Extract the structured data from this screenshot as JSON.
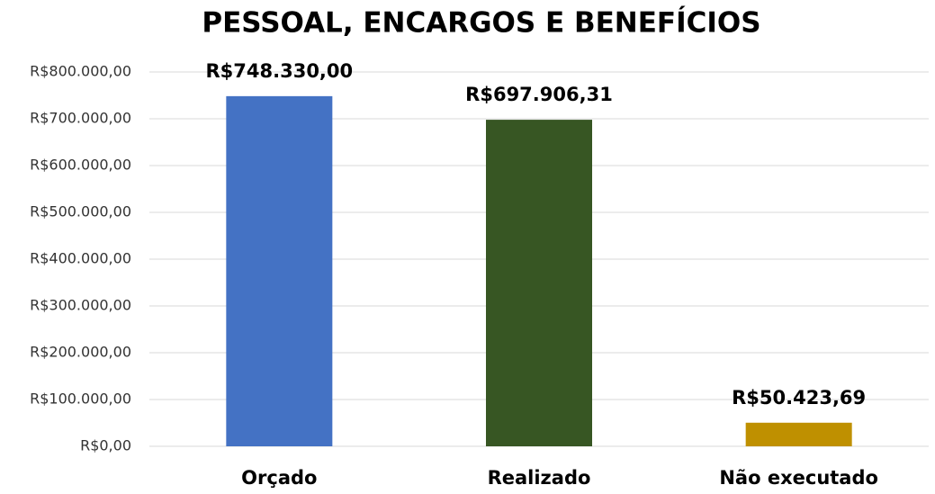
{
  "chart_data": {
    "type": "bar",
    "title": "PESSOAL, ENCARGOS E BENEFÍCIOS",
    "categories": [
      "Orçado",
      "Realizado",
      "Não executado"
    ],
    "values": [
      748330.0,
      697906.31,
      50423.69
    ],
    "value_labels": [
      "R$748.330,00",
      "R$697.906,31",
      "R$50.423,69"
    ],
    "colors": [
      "#4472c4",
      "#375623",
      "#bf9000"
    ],
    "ylim": [
      0,
      800000
    ],
    "yticks": [
      {
        "value": 0,
        "label": "R$0,00"
      },
      {
        "value": 100000,
        "label": "R$100.000,00"
      },
      {
        "value": 200000,
        "label": "R$200.000,00"
      },
      {
        "value": 300000,
        "label": "R$300.000,00"
      },
      {
        "value": 400000,
        "label": "R$400.000,00"
      },
      {
        "value": 500000,
        "label": "R$500.000,00"
      },
      {
        "value": 600000,
        "label": "R$600.000,00"
      },
      {
        "value": 700000,
        "label": "R$700.000,00"
      },
      {
        "value": 800000,
        "label": "R$800.000,00"
      }
    ],
    "grid": true
  }
}
